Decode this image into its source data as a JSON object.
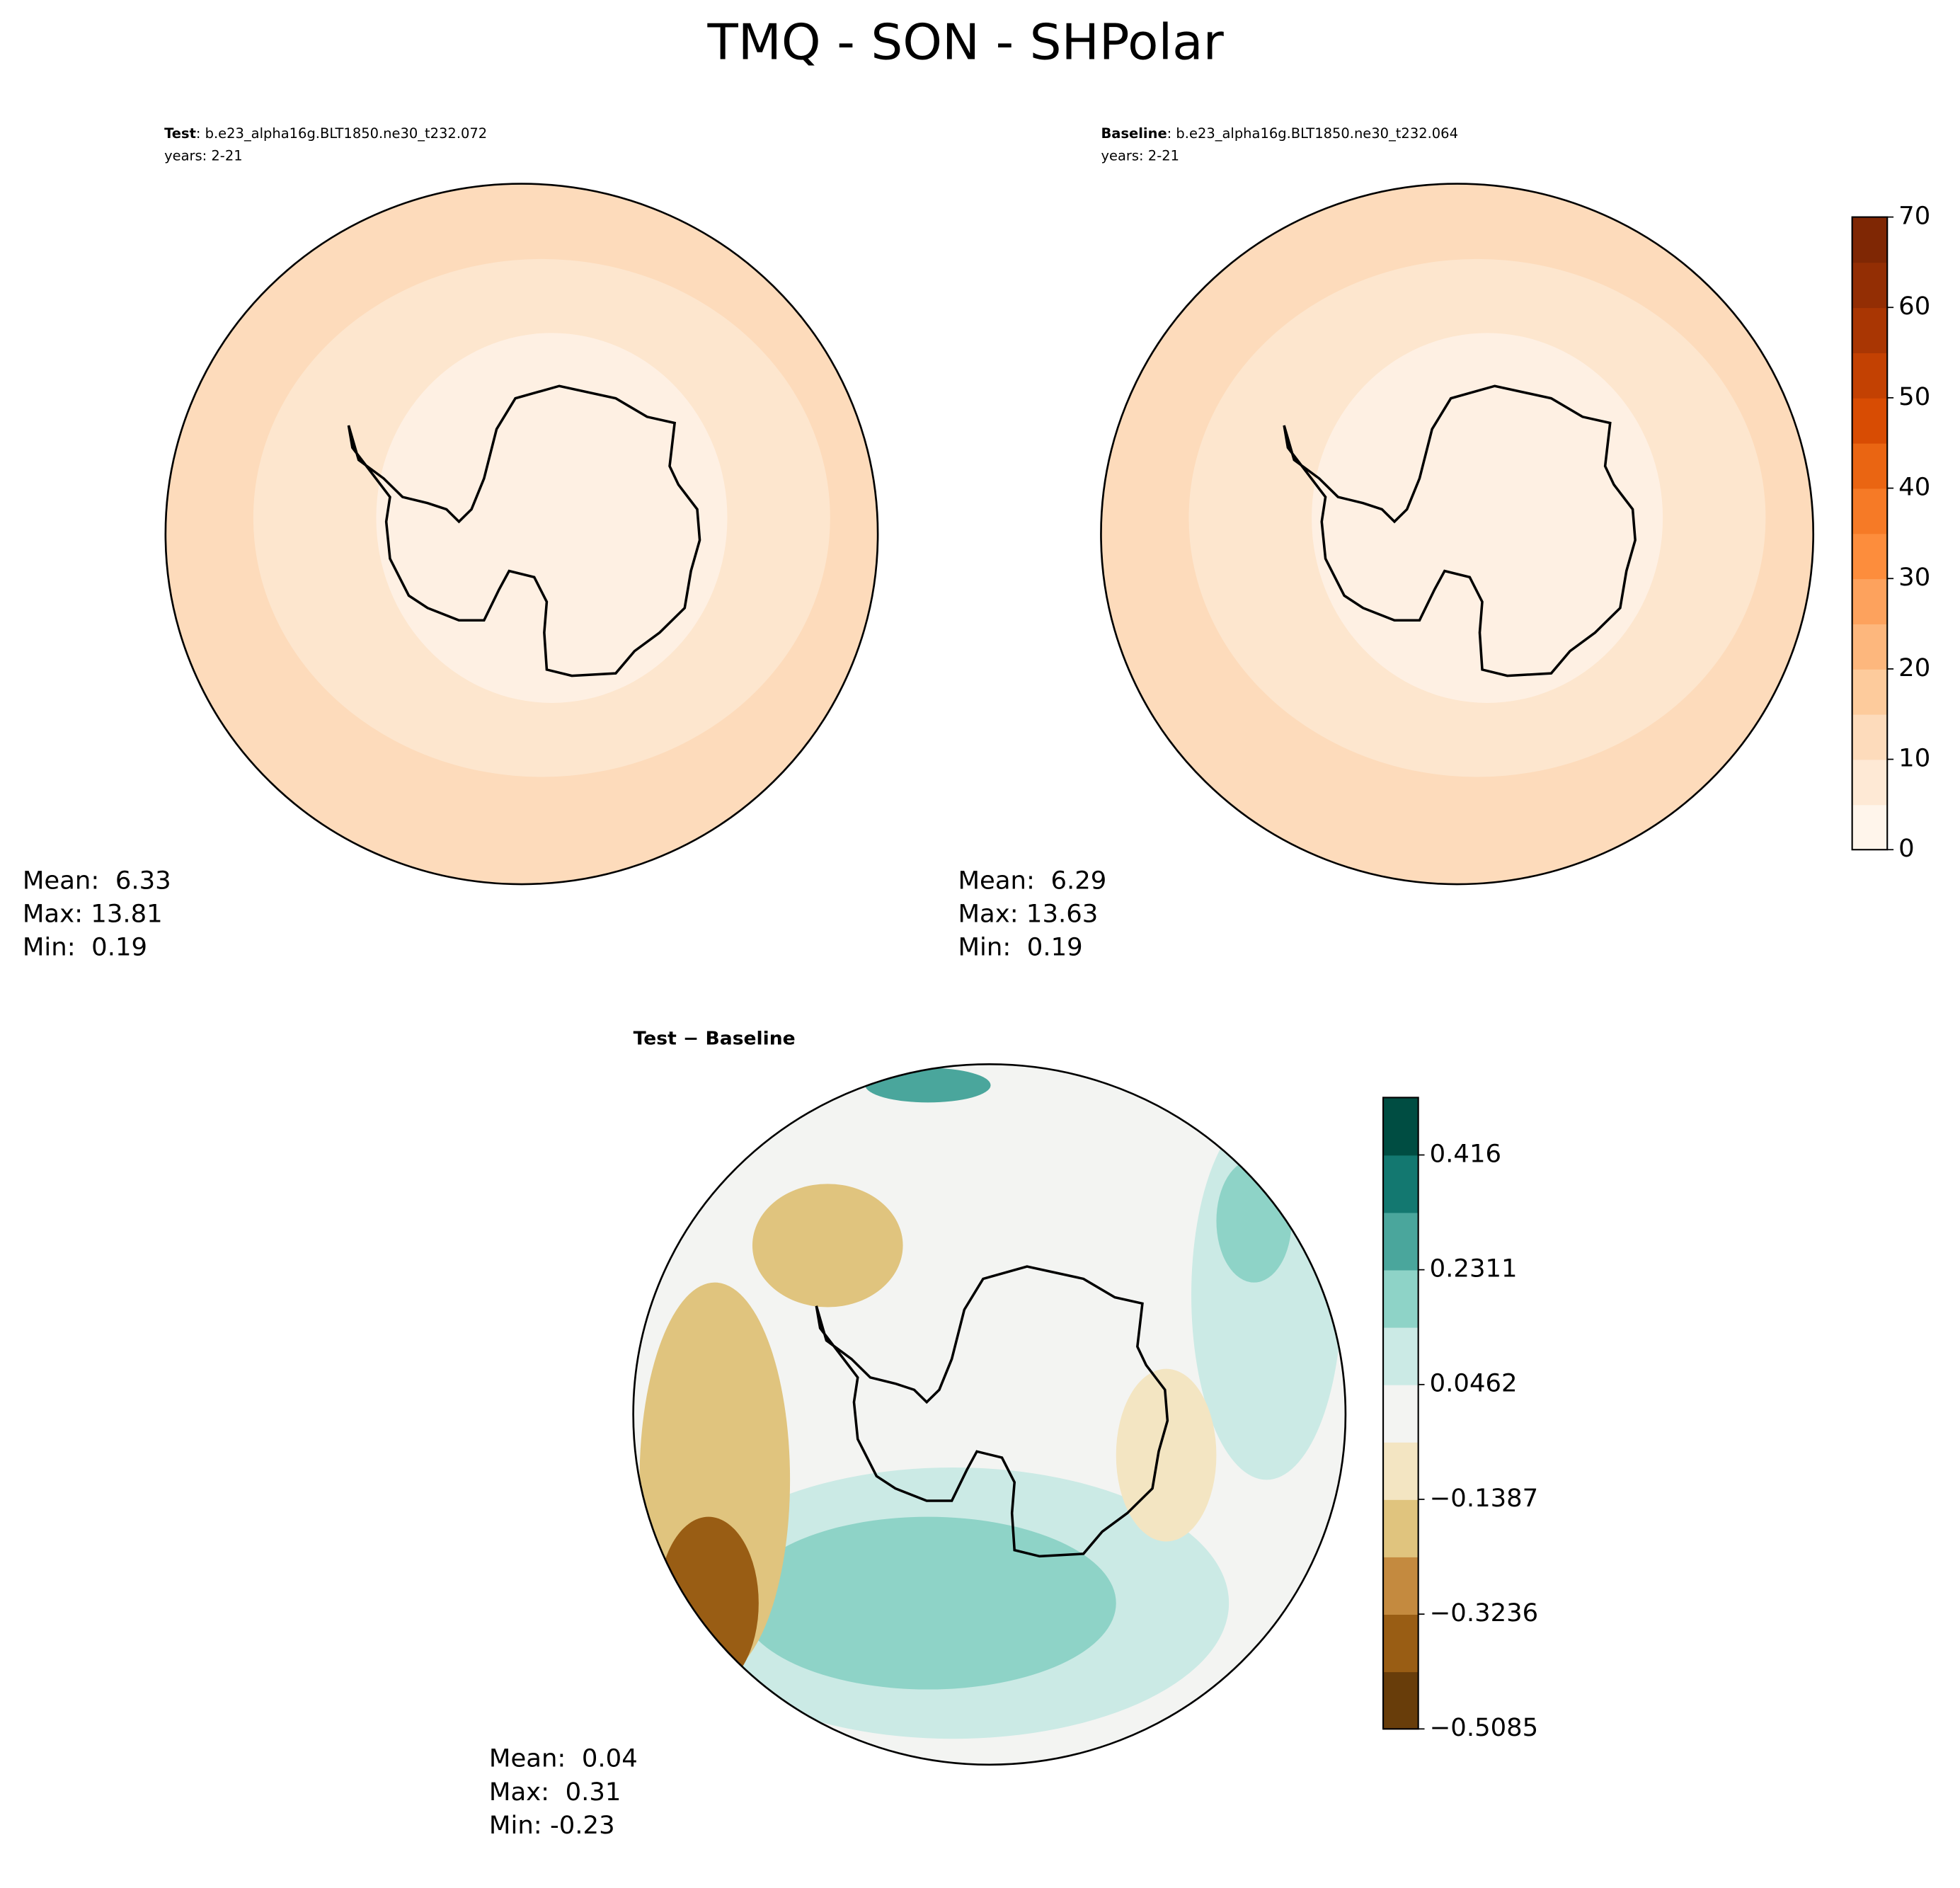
{
  "title": "TMQ - SON - SHPolar",
  "panels": [
    {
      "label": "Test",
      "run": ": b.e23_alpha16g.BLT1850.ne30_t232.072",
      "years": "years: 2-21",
      "stats": [
        "Mean:  6.33",
        "Max: 13.81",
        "Min:  0.19"
      ]
    },
    {
      "label": "Baseline",
      "run": ": b.e23_alpha16g.BLT1850.ne30_t232.064",
      "years": "years: 2-21",
      "stats": [
        "Mean:  6.29",
        "Max: 13.63",
        "Min:  0.19"
      ]
    },
    {
      "label": "Test − Baseline",
      "stats": [
        "Mean:  0.04",
        "Max:  0.31",
        "Min: -0.23"
      ]
    }
  ],
  "colorbars": [
    {
      "lim": [
        0,
        70
      ],
      "ticks": [
        0,
        10,
        20,
        30,
        40,
        50,
        60,
        70
      ],
      "colors": [
        "#fff5eb",
        "#fee9d5",
        "#fddbbb",
        "#fdcb9c",
        "#fdb77d",
        "#fda25d",
        "#fd8d3c",
        "#f67a26",
        "#ea6512",
        "#d84c03",
        "#c34102",
        "#a93603",
        "#932e04",
        "#7f2704"
      ]
    },
    {
      "lim": [
        -0.5085,
        0.5085
      ],
      "ticks": [
        {
          "value": -0.5085,
          "label": "−0.5085"
        },
        {
          "value": -0.3236,
          "label": "−0.3236"
        },
        {
          "value": -0.1387,
          "label": "−0.1387"
        },
        0.0462,
        0.2311,
        0.416
      ],
      "colors": [
        "#683d0a",
        "#995d14",
        "#c48a3f",
        "#e0c47e",
        "#f3e5c2",
        "#f3f4f2",
        "#cbeae5",
        "#8ed3c7",
        "#4aa69c",
        "#137870",
        "#004d42"
      ]
    }
  ]
}
